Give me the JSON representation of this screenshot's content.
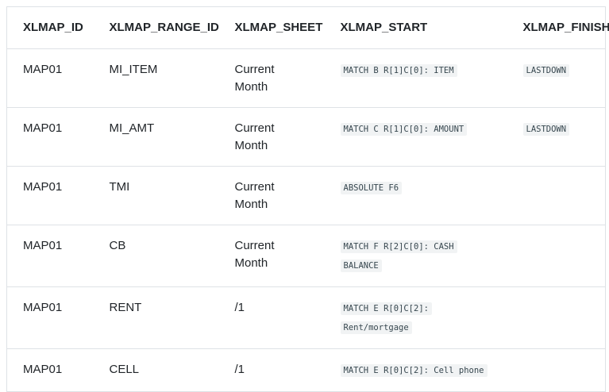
{
  "colors": {
    "page_bg": "#ffffff",
    "border": "#dee2e6",
    "text": "#212529",
    "chip_bg": "#f1f3f4",
    "chip_text": "#37474f"
  },
  "table": {
    "columns": [
      {
        "key": "xlmap_id",
        "label": "XLMAP_ID",
        "code": false
      },
      {
        "key": "xlmap_range_id",
        "label": "XLMAP_RANGE_ID",
        "code": false
      },
      {
        "key": "xlmap_sheet",
        "label": "XLMAP_SHEET",
        "code": false
      },
      {
        "key": "xlmap_start",
        "label": "XLMAP_START",
        "code": true
      },
      {
        "key": "xlmap_finish",
        "label": "XLMAP_FINISH",
        "code": true
      }
    ],
    "rows": [
      {
        "xlmap_id": "MAP01",
        "xlmap_range_id": "MI_ITEM",
        "xlmap_sheet": "Current Month",
        "xlmap_start": "MATCH B R[1]C[0]: ITEM",
        "xlmap_finish": "LASTDOWN"
      },
      {
        "xlmap_id": "MAP01",
        "xlmap_range_id": "MI_AMT",
        "xlmap_sheet": "Current Month",
        "xlmap_start": "MATCH C R[1]C[0]: AMOUNT",
        "xlmap_finish": "LASTDOWN"
      },
      {
        "xlmap_id": "MAP01",
        "xlmap_range_id": "TMI",
        "xlmap_sheet": "Current Month",
        "xlmap_start": "ABSOLUTE F6",
        "xlmap_finish": ""
      },
      {
        "xlmap_id": "MAP01",
        "xlmap_range_id": "CB",
        "xlmap_sheet": "Current Month",
        "xlmap_start": "MATCH F R[2]C[0]: CASH BALANCE",
        "xlmap_finish": ""
      },
      {
        "xlmap_id": "MAP01",
        "xlmap_range_id": "RENT",
        "xlmap_sheet": "/1",
        "xlmap_start": "MATCH E R[0]C[2]: Rent/mortgage",
        "xlmap_finish": ""
      },
      {
        "xlmap_id": "MAP01",
        "xlmap_range_id": "CELL",
        "xlmap_sheet": "/1",
        "xlmap_start": "MATCH E R[0]C[2]: Cell phone",
        "xlmap_finish": ""
      }
    ]
  }
}
